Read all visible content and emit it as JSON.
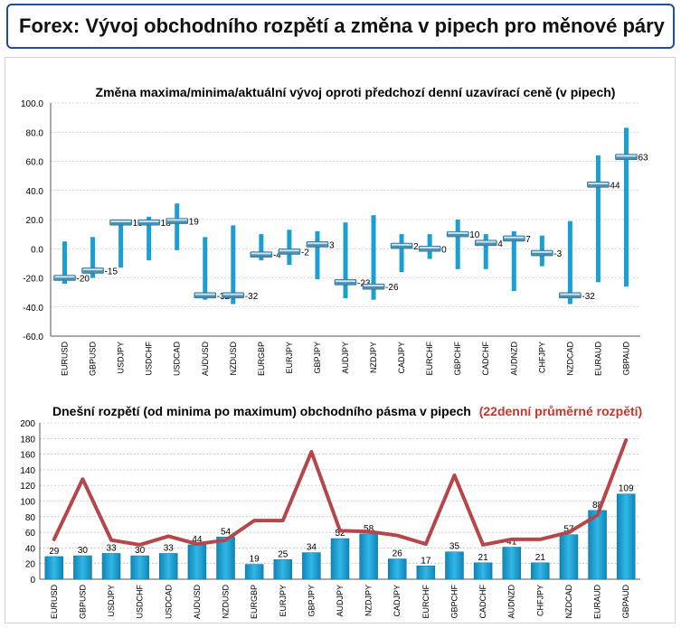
{
  "header": {
    "title": "Forex: Vývoj obchodního rozpětí a změna v pipech pro měnové páry"
  },
  "chart_data": [
    {
      "type": "bar",
      "subtype": "high-low-close",
      "title": "Změna maxima/minima/aktuální vývoj oproti předchozí denní uzavírací ceně (v pipech)",
      "ylim": [
        -60,
        100
      ],
      "yticks": [
        "100.0",
        "80.0",
        "60.0",
        "40.0",
        "20.0",
        "0.0",
        "-20.0",
        "-40.0",
        "-60.0"
      ],
      "categories": [
        "EURUSD",
        "GBPUSD",
        "USDJPY",
        "USDCHF",
        "USDCAD",
        "AUDUSD",
        "NZDUSD",
        "EURGBP",
        "EURJPY",
        "GBPJPY",
        "AUDJPY",
        "NZDJPY",
        "CADJPY",
        "EURCHF",
        "GBPCHF",
        "CADCHF",
        "AUDNZD",
        "CHFJPY",
        "NZDCAD",
        "EURAUD",
        "GBPAUD"
      ],
      "high": [
        5,
        8,
        18,
        22,
        31,
        8,
        16,
        10,
        13,
        12,
        18,
        23,
        10,
        10,
        20,
        10,
        12,
        9,
        19,
        64,
        83
      ],
      "low": [
        -24,
        -20,
        -13,
        -8,
        -1,
        -35,
        -38,
        -8,
        -11,
        -21,
        -34,
        -35,
        -16,
        -7,
        -14,
        -14,
        -29,
        -12,
        -38,
        -23,
        -26
      ],
      "current": [
        -20,
        -15,
        18,
        18,
        19,
        -32,
        -32,
        -4,
        -2,
        3,
        -23,
        -26,
        2,
        0,
        10,
        4,
        7,
        -3,
        -32,
        44,
        63
      ],
      "labels": [
        "-20",
        "-15",
        "18",
        "18",
        "19",
        "-32",
        "-32",
        "-4",
        "-2",
        "3",
        "-23",
        "-26",
        "2",
        "0",
        "10",
        "4",
        "7",
        "-3",
        "-32",
        "44",
        "63"
      ],
      "colors": {
        "range": "#1a9fd4",
        "marker": "#4a8fb0",
        "grid": "#b0b0b0"
      }
    },
    {
      "type": "bar",
      "title_main": "Dnešní rozpětí (od minima po maximum) obchodního pásma v pipech",
      "title_accent": "(22denní průměrné rozpětí)",
      "ylim": [
        0,
        200
      ],
      "yticks": [
        "200",
        "180",
        "160",
        "140",
        "120",
        "100",
        "80",
        "60",
        "40",
        "20",
        "0"
      ],
      "categories": [
        "EURUSD",
        "GBPUSD",
        "USDJPY",
        "USDCHF",
        "USDCAD",
        "AUDUSD",
        "NZDUSD",
        "EURGBP",
        "EURJPY",
        "GBPJPY",
        "AUDJPY",
        "NZDJPY",
        "CADJPY",
        "EURCHF",
        "GBPCHF",
        "CADCHF",
        "AUDNZD",
        "CHFJPY",
        "NZDCAD",
        "EURAUD",
        "GBPAUD"
      ],
      "series": [
        {
          "values": [
            29,
            30,
            33,
            30,
            33,
            44,
            54,
            19,
            25,
            34,
            52,
            58,
            26,
            17,
            35,
            21,
            41,
            21,
            57,
            88,
            109
          ]
        },
        {
          "values": [
            51,
            128,
            50,
            44,
            55,
            45,
            50,
            75,
            75,
            163,
            62,
            61,
            56,
            45,
            133,
            44,
            51,
            51,
            60,
            82,
            178
          ]
        }
      ],
      "labels": [
        "29",
        "30",
        "33",
        "30",
        "33",
        "44",
        "54",
        "19",
        "25",
        "34",
        "52",
        "58",
        "26",
        "17",
        "35",
        "21",
        "41",
        "21",
        "57",
        "88",
        "109"
      ],
      "colors": {
        "bar": "#1a9fd4",
        "line": "#b5464a",
        "accent_text": "#c0392b",
        "grid": "#b0b0b0"
      }
    }
  ]
}
